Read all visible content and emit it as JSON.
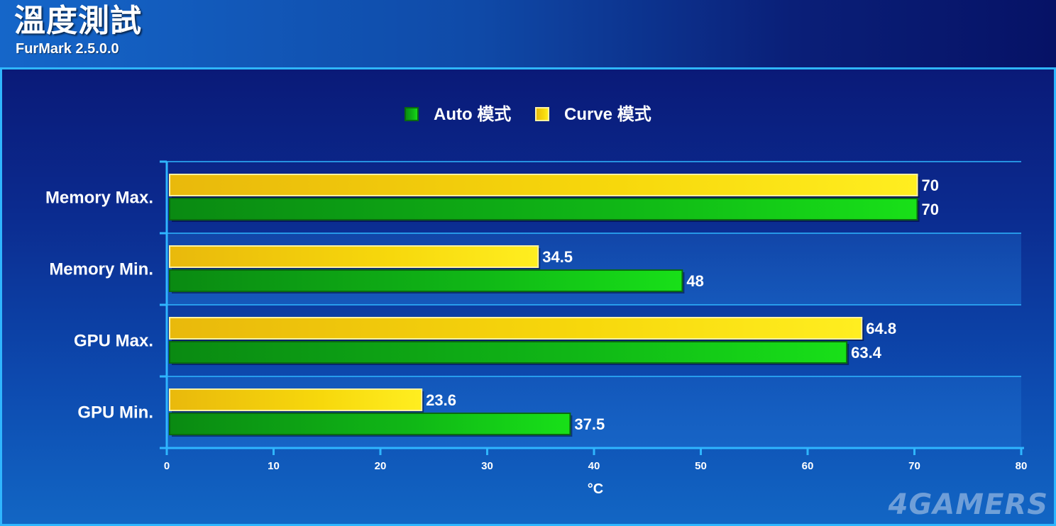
{
  "header": {
    "title": "溫度測試",
    "subtitle": "FurMark 2.5.0.0"
  },
  "watermark": "4GAMERS",
  "colors": {
    "auto": "#12c812",
    "curve": "#f7d80c",
    "grid": "#2fb6ff",
    "text": "#ffffff"
  },
  "chart_data": {
    "type": "bar",
    "orientation": "horizontal",
    "categories": [
      "Memory Max.",
      "Memory Min.",
      "GPU Max.",
      "GPU Min."
    ],
    "series": [
      {
        "name": "Auto 模式",
        "values": [
          70,
          48,
          63.4,
          37.5
        ]
      },
      {
        "name": "Curve 模式",
        "values": [
          70,
          34.5,
          64.8,
          23.6
        ]
      }
    ],
    "value_labels": {
      "Auto 模式": [
        "70",
        "48",
        "63.4",
        "37.5"
      ],
      "Curve 模式": [
        "70",
        "34.5",
        "64.8",
        "23.6"
      ]
    },
    "xlabel": "°C",
    "xlim": [
      0,
      80
    ],
    "xticks": [
      "0",
      "10",
      "20",
      "30",
      "40",
      "50",
      "60",
      "70",
      "80"
    ],
    "legend_position": "top-center",
    "grid": true
  }
}
